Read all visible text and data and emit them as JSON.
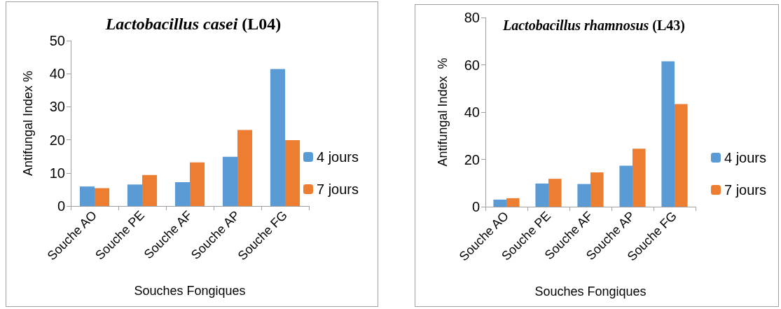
{
  "chart_data": [
    {
      "type": "bar",
      "title": "Lactobacillus casei (L04)",
      "xlabel": "Souches Fongiques",
      "ylabel": "Antifungal Index %",
      "categories": [
        "Souche AO",
        "Souche PE",
        "Souche AF",
        "Souche AP",
        "Souche FG"
      ],
      "series": [
        {
          "name": "4 jours",
          "color": "#5b9bd5",
          "values": [
            5.9,
            6.5,
            7.2,
            14.9,
            41.4
          ]
        },
        {
          "name": "7 jours",
          "color": "#ed7d31",
          "values": [
            5.4,
            9.4,
            13.2,
            23.0,
            19.9
          ]
        }
      ],
      "ylim": [
        0,
        50
      ],
      "yticks": [
        0,
        10,
        20,
        30,
        40,
        50
      ],
      "grid": false,
      "legend": "right"
    },
    {
      "type": "bar",
      "title": "Lactobacillus rhamnosus (L43)",
      "xlabel": "Souches Fongiques",
      "ylabel": "Antifungal Index  %",
      "categories": [
        "Souche AO",
        "Souche PE",
        "Souche AF",
        "Souche AP",
        "Souche FG"
      ],
      "series": [
        {
          "name": "4 jours",
          "color": "#5b9bd5",
          "values": [
            3.0,
            9.8,
            9.6,
            17.3,
            61.5
          ]
        },
        {
          "name": "7 jours",
          "color": "#ed7d31",
          "values": [
            3.6,
            11.8,
            14.5,
            24.5,
            43.4
          ]
        }
      ],
      "ylim": [
        0,
        80
      ],
      "yticks": [
        0,
        20,
        40,
        60,
        80
      ],
      "grid": false,
      "legend": "right"
    }
  ]
}
